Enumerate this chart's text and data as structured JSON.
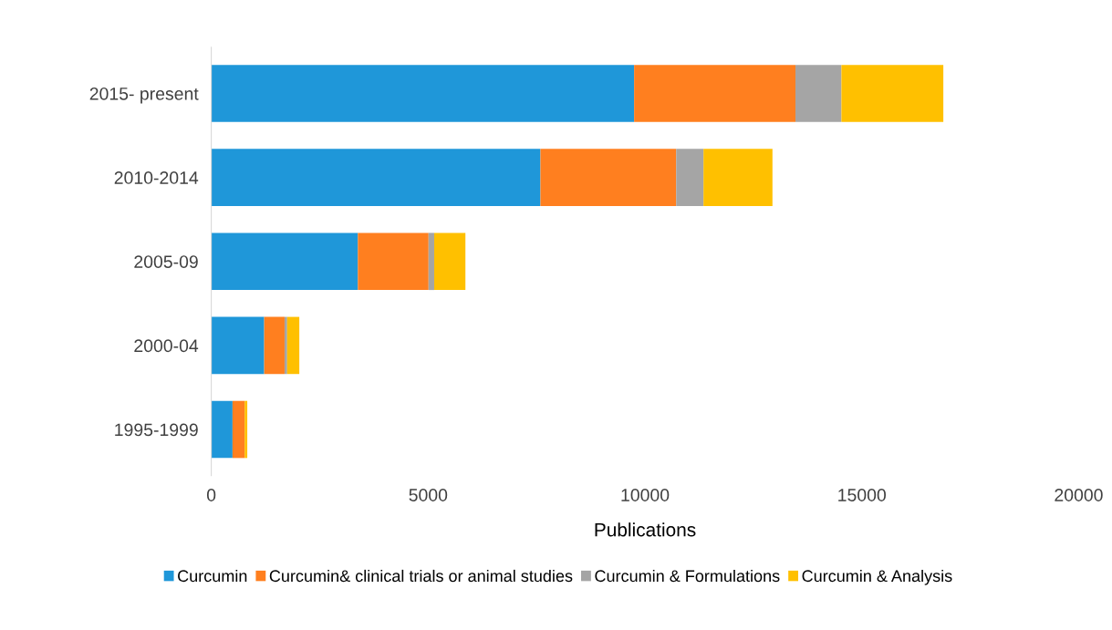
{
  "chart_data": {
    "type": "bar",
    "orientation": "horizontal",
    "stacked": true,
    "xlabel": "Publications",
    "categories": [
      "2015- present",
      "2010-2014",
      "2005-09",
      "2000-04",
      "1995-1999"
    ],
    "series": [
      {
        "name": "Curcumin",
        "color": "#1f97d9",
        "values": [
          9750,
          7590,
          3380,
          1220,
          490
        ]
      },
      {
        "name": "Curcumin& clinical trials or animal studies",
        "color": "#ff7f1f",
        "values": [
          3720,
          3130,
          1630,
          470,
          280
        ]
      },
      {
        "name": "Curcumin & Formulations",
        "color": "#a5a5a5",
        "values": [
          1060,
          630,
          130,
          60,
          null
        ]
      },
      {
        "name": "Curcumin & Analysis",
        "color": "#ffc000",
        "values": [
          2350,
          1590,
          720,
          280,
          60
        ]
      }
    ],
    "xlim": [
      0,
      20000
    ],
    "xticks": [
      0,
      5000,
      10000,
      15000,
      20000
    ],
    "grid": false,
    "legend": "bottom"
  }
}
